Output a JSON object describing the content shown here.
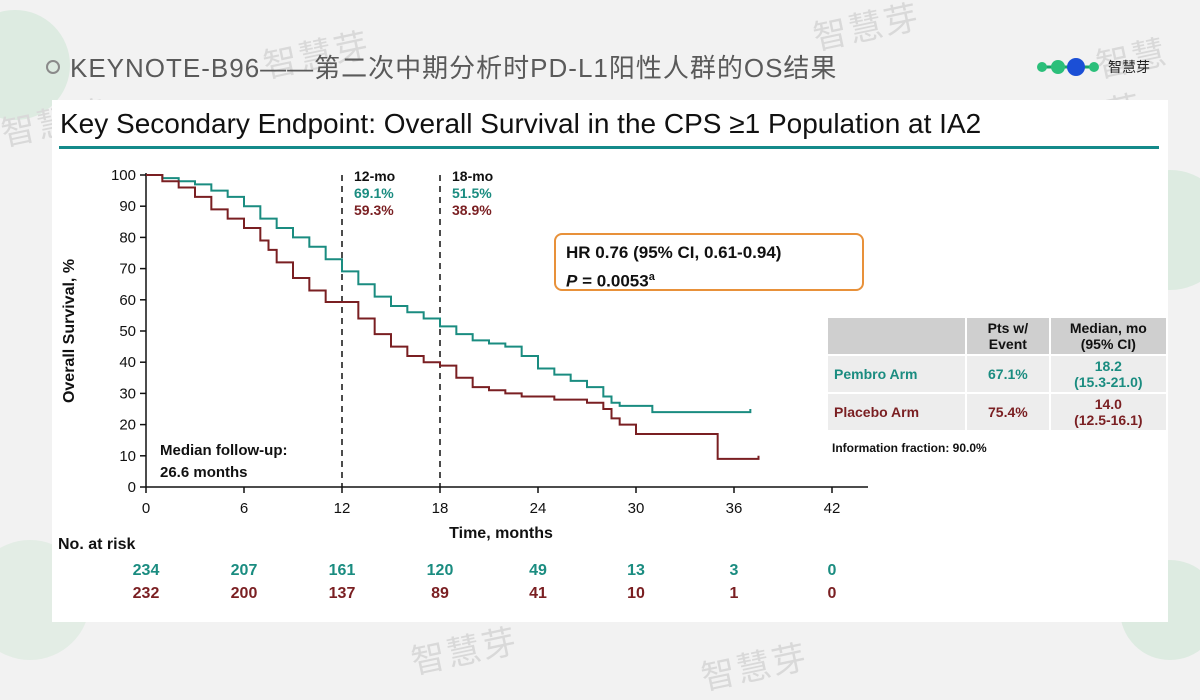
{
  "slide": {
    "title": "KEYNOTE-B96——第二次中期分析时PD-L1阳性人群的OS结果",
    "logo_text": "智慧芽",
    "watermarks": [
      "智慧芽",
      "智慧芽",
      "智慧芽",
      "智慧芽",
      "智慧芽",
      "智慧芽"
    ]
  },
  "colors": {
    "pembro": "#1a8c80",
    "placebo": "#7a1f22",
    "accent": "#148a8a",
    "highlight": "#e8913a"
  },
  "chart_data": {
    "type": "line",
    "title": "Key Secondary Endpoint: Overall Survival in the CPS ≥1 Population at IA2",
    "xlabel": "Time, months",
    "ylabel": "Overall Survival, %",
    "xlim": [
      0,
      42
    ],
    "ylim": [
      0,
      100
    ],
    "xticks": [
      "0",
      "6",
      "12",
      "18",
      "24",
      "30",
      "36",
      "42"
    ],
    "yticks": [
      "0",
      "10",
      "20",
      "30",
      "40",
      "50",
      "60",
      "70",
      "80",
      "90",
      "100"
    ],
    "series": [
      {
        "name": "Pembro Arm",
        "x": [
          0,
          1,
          2,
          3,
          4,
          5,
          6,
          7,
          8,
          9,
          10,
          11,
          12,
          13,
          14,
          15,
          16,
          17,
          18,
          19,
          20,
          21,
          22,
          23,
          24,
          25,
          26,
          27,
          28,
          28.5,
          29,
          30,
          31,
          32,
          33,
          34,
          35,
          36,
          37
        ],
        "y": [
          100,
          99,
          98,
          97,
          95,
          93,
          90,
          86,
          83,
          80,
          77,
          73,
          69.1,
          65,
          61,
          58,
          56,
          54,
          51.5,
          49,
          47,
          46,
          45,
          42,
          38,
          36,
          34,
          32,
          29,
          27,
          26,
          26,
          24,
          24,
          24,
          24,
          24,
          24,
          25
        ]
      },
      {
        "name": "Placebo Arm",
        "x": [
          0,
          1,
          2,
          3,
          4,
          5,
          6,
          7,
          7.5,
          8,
          9,
          10,
          11,
          12,
          13,
          14,
          15,
          16,
          17,
          18,
          19,
          20,
          21,
          22,
          23,
          24,
          25,
          26,
          27,
          28,
          28.5,
          29,
          30,
          31,
          32,
          33,
          34,
          35,
          36,
          37,
          37.5
        ],
        "y": [
          100,
          98,
          96,
          93,
          89,
          86,
          83,
          79,
          76,
          72,
          67,
          63,
          59.3,
          59.3,
          54,
          49,
          45,
          42,
          40,
          38.9,
          35,
          32,
          31,
          30,
          29,
          29,
          28,
          28,
          27,
          25,
          22,
          20,
          17,
          17,
          17,
          17,
          17,
          9,
          9,
          9,
          10
        ]
      }
    ],
    "reference_lines": [
      {
        "x": 12,
        "label": "12-mo",
        "pembro": "69.1%",
        "placebo": "59.3%"
      },
      {
        "x": 18,
        "label": "18-mo",
        "pembro": "51.5%",
        "placebo": "38.9%"
      }
    ],
    "median_followup": [
      "Median follow-up:",
      "26.6 months"
    ],
    "hr_line1": "HR 0.76 (95% CI, 0.61-0.94)",
    "p_label": "P",
    "p_value": " = 0.0053",
    "p_sup": "a",
    "stats_table": {
      "headers": [
        "",
        "Pts w/ Event",
        "Median, mo (95% CI)"
      ],
      "rows": [
        {
          "arm": "Pembro Arm",
          "event": "67.1%",
          "median": "18.2",
          "ci": "(15.3-21.0)"
        },
        {
          "arm": "Placebo Arm",
          "event": "75.4%",
          "median": "14.0",
          "ci": "(12.5-16.1)"
        }
      ]
    },
    "info_fraction": "Information fraction: 90.0%",
    "at_risk": {
      "label": "No. at risk",
      "pembro": [
        "234",
        "207",
        "161",
        "120",
        "49",
        "13",
        "3",
        "0"
      ],
      "placebo": [
        "232",
        "200",
        "137",
        "89",
        "41",
        "10",
        "1",
        "0"
      ]
    }
  }
}
